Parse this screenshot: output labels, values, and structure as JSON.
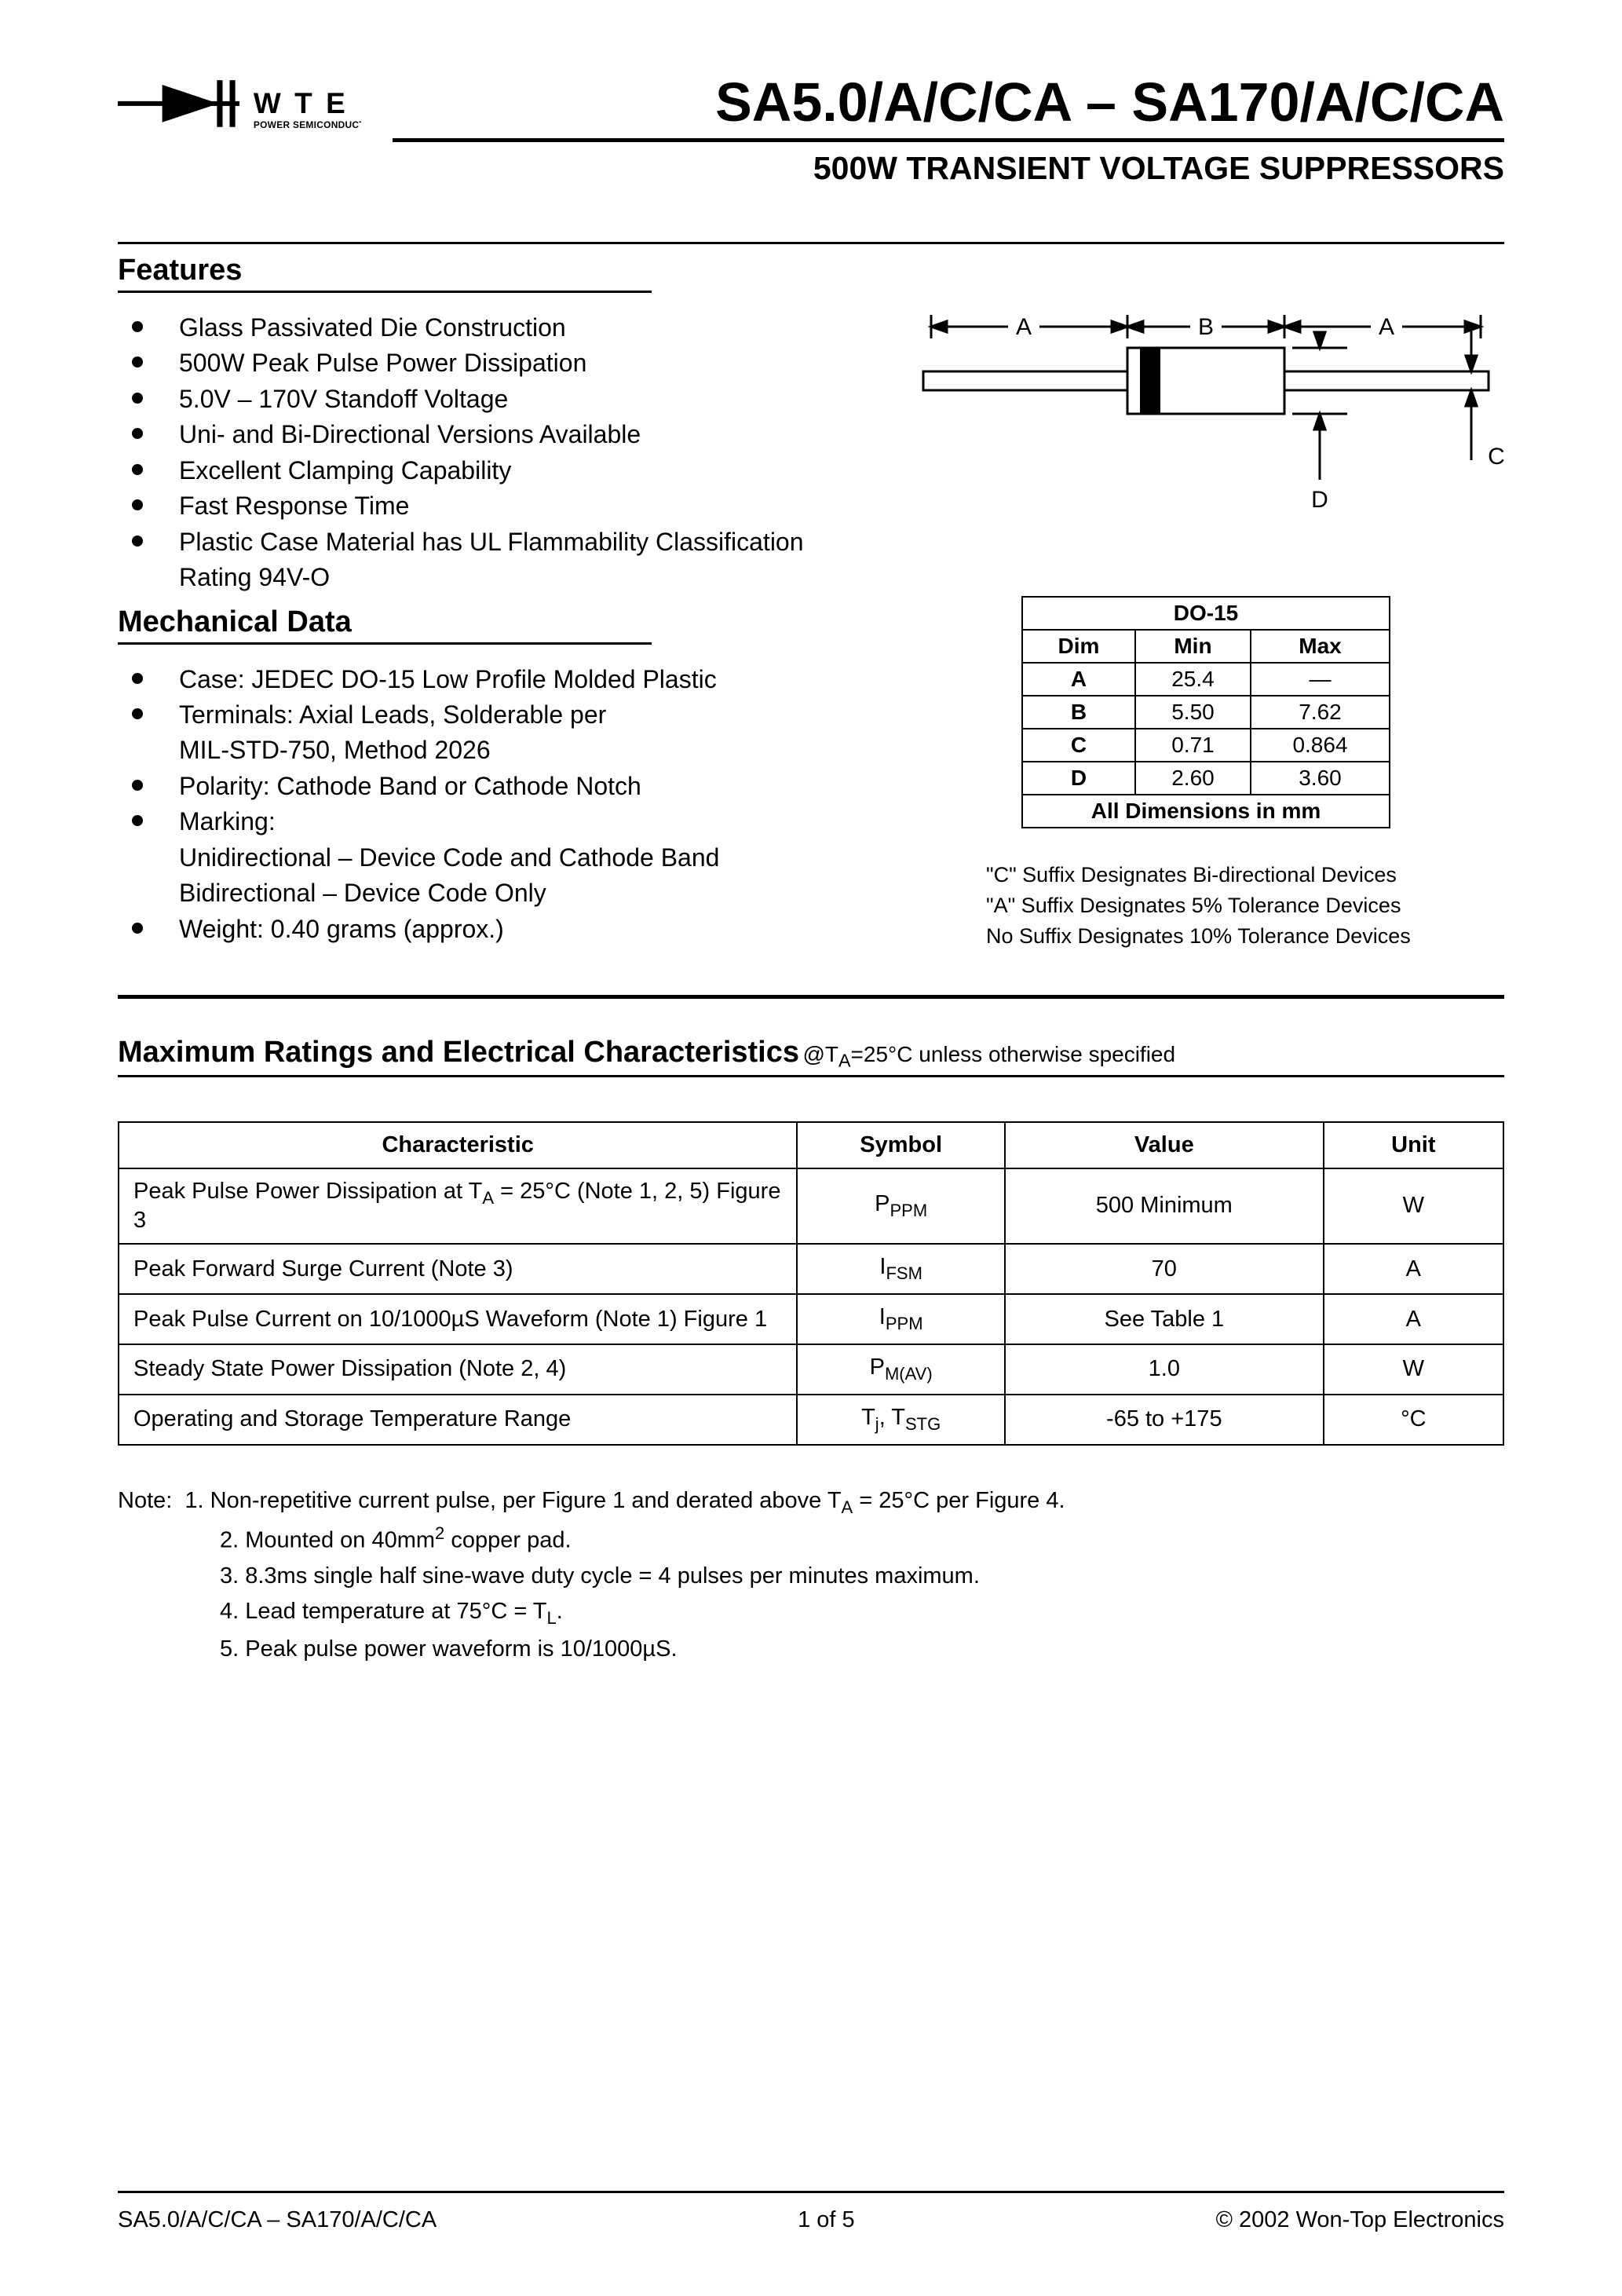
{
  "logo": {
    "brand_top": "W T E",
    "brand_sub": "POWER SEMICONDUCTORS"
  },
  "title": "SA5.0/A/C/CA – SA170/A/C/CA",
  "subtitle": "500W TRANSIENT VOLTAGE SUPPRESSORS",
  "features": {
    "heading": "Features",
    "items": [
      "Glass Passivated Die Construction",
      "500W Peak Pulse Power Dissipation",
      "5.0V – 170V Standoff Voltage",
      "Uni- and Bi-Directional Versions Available",
      "Excellent Clamping Capability",
      "Fast Response Time",
      "Plastic Case Material has UL Flammability Classification Rating 94V-O"
    ]
  },
  "mechanical": {
    "heading": "Mechanical Data",
    "items": [
      {
        "text": "Case: JEDEC DO-15 Low Profile Molded Plastic"
      },
      {
        "text": "Terminals: Axial Leads, Solderable per",
        "cont": [
          "MIL-STD-750, Method 2026"
        ]
      },
      {
        "text": "Polarity: Cathode Band or Cathode Notch"
      },
      {
        "text": "Marking:",
        "cont": [
          "Unidirectional – Device Code and Cathode Band",
          "Bidirectional – Device Code Only"
        ]
      },
      {
        "text": "Weight: 0.40 grams (approx.)"
      }
    ]
  },
  "diagram": {
    "labels": {
      "A": "A",
      "B": "B",
      "C": "C",
      "D": "D"
    },
    "line_color": "#000000",
    "fill_band": "#000000",
    "body_fill": "#ffffff"
  },
  "dimensions": {
    "title": "DO-15",
    "headers": [
      "Dim",
      "Min",
      "Max"
    ],
    "rows": [
      [
        "A",
        "25.4",
        "—"
      ],
      [
        "B",
        "5.50",
        "7.62"
      ],
      [
        "C",
        "0.71",
        "0.864"
      ],
      [
        "D",
        "2.60",
        "3.60"
      ]
    ],
    "footer": "All Dimensions in mm"
  },
  "suffix_notes": [
    "\"C\" Suffix Designates Bi-directional Devices",
    "\"A\" Suffix Designates 5% Tolerance Devices",
    "No Suffix Designates 10% Tolerance Devices"
  ],
  "max_ratings": {
    "heading": "Maximum Ratings and Electrical Characteristics",
    "condition_prefix": " @T",
    "condition_sub": "A",
    "condition_rest": "=25°C unless otherwise specified",
    "headers": [
      "Characteristic",
      "Symbol",
      "Value",
      "Unit"
    ],
    "rows": [
      {
        "char": "Peak Pulse Power Dissipation at T_A = 25°C (Note 1, 2, 5) Figure 3",
        "sym": "P",
        "sub": "PPM",
        "value": "500 Minimum",
        "unit": "W"
      },
      {
        "char": "Peak Forward Surge Current (Note 3)",
        "sym": "I",
        "sub": "FSM",
        "value": "70",
        "unit": "A"
      },
      {
        "char": "Peak Pulse Current on 10/1000µS Waveform (Note 1) Figure 1",
        "sym": "I",
        "sub": "PPM",
        "value": "See Table 1",
        "unit": "A"
      },
      {
        "char": "Steady State Power Dissipation (Note 2, 4)",
        "sym": "P",
        "sub": "M(AV)",
        "value": "1.0",
        "unit": "W"
      },
      {
        "char": "Operating and Storage Temperature Range",
        "sym": "T_j, T",
        "sub": "STG",
        "value": "-65 to +175",
        "unit": "°C"
      }
    ]
  },
  "notes": {
    "label": "Note:",
    "items": [
      "1. Non-repetitive current pulse, per Figure 1 and derated above T_A = 25°C per Figure 4.",
      "2. Mounted on 40mm² copper pad.",
      "3. 8.3ms single half sine-wave duty cycle = 4 pulses per minutes maximum.",
      "4. Lead temperature at 75°C = T_L.",
      "5. Peak pulse power waveform is 10/1000µS."
    ]
  },
  "footer": {
    "left": "SA5.0/A/C/CA – SA170/A/C/CA",
    "center": "1  of  5",
    "right": "© 2002 Won-Top Electronics"
  },
  "colors": {
    "text": "#000000",
    "bg": "#ffffff",
    "rule": "#000000"
  }
}
